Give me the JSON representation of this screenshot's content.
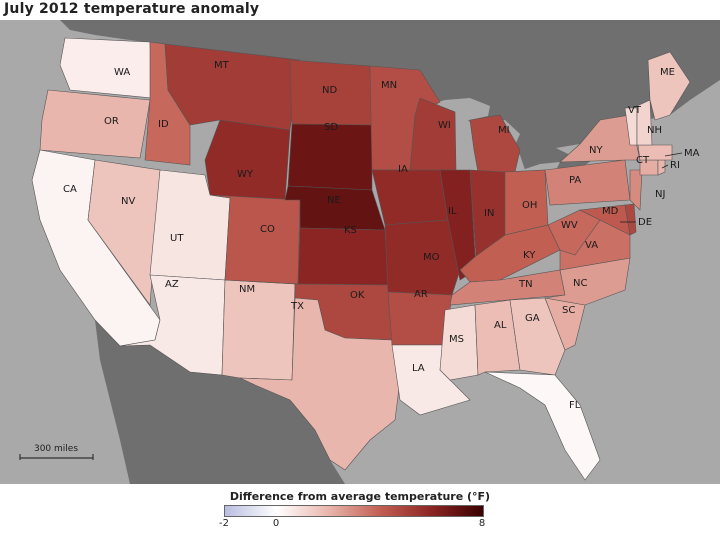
{
  "title": "July 2012 temperature anomaly",
  "scale_label": "300 miles",
  "legend": {
    "title": "Difference from average temperature (°F)",
    "ticks": [
      "-2",
      "0",
      "8"
    ],
    "colors": [
      "#b9bde0",
      "#ffffff",
      "#e9b6ad",
      "#c25f53",
      "#8b2523",
      "#3a0000"
    ]
  },
  "states": [
    "WA",
    "OR",
    "CA",
    "NV",
    "ID",
    "MT",
    "WY",
    "UT",
    "AZ",
    "NM",
    "CO",
    "ND",
    "SD",
    "NE",
    "KS",
    "OK",
    "TX",
    "MN",
    "IA",
    "MO",
    "AR",
    "LA",
    "WI",
    "IL",
    "MI",
    "IN",
    "OH",
    "KY",
    "TN",
    "MS",
    "AL",
    "GA",
    "FL",
    "SC",
    "NC",
    "VA",
    "WV",
    "PA",
    "NY",
    "MD",
    "DE",
    "NJ",
    "CT",
    "RI",
    "MA",
    "VT",
    "NH",
    "ME"
  ],
  "anomalies": {
    "WA": 0.5,
    "OR": 2.0,
    "CA": 0.3,
    "NV": 1.6,
    "ID": 3.8,
    "MT": 5.2,
    "WY": 5.8,
    "UT": 0.7,
    "AZ": 0.6,
    "NM": 1.6,
    "CO": 4.3,
    "ND": 5.0,
    "SD": 6.8,
    "NE": 7.0,
    "KS": 6.0,
    "OK": 4.8,
    "TX": 2.0,
    "MN": 4.6,
    "IA": 5.8,
    "MO": 5.8,
    "AR": 4.6,
    "LA": 0.6,
    "WI": 5.2,
    "IL": 6.2,
    "MI": 4.8,
    "IN": 5.6,
    "OH": 4.0,
    "KY": 4.0,
    "TN": 3.2,
    "MS": 1.0,
    "AL": 1.8,
    "GA": 1.6,
    "FL": 0.2,
    "SC": 2.2,
    "NC": 2.6,
    "VA": 3.6,
    "WV": 3.8,
    "PA": 3.2,
    "NY": 2.6,
    "MD": 4.2,
    "DE": 4.8,
    "NJ": 3.0,
    "CT": 2.2,
    "RI": 2.0,
    "MA": 1.8,
    "VT": 1.0,
    "NH": 1.2,
    "ME": 1.6
  }
}
